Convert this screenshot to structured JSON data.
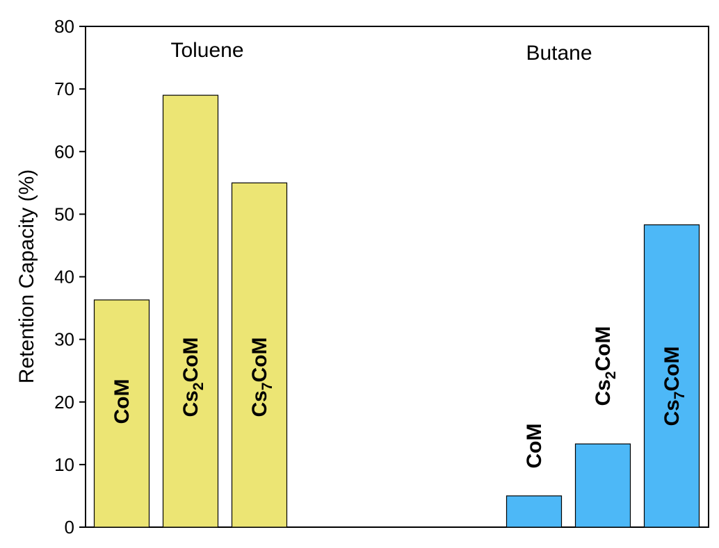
{
  "chart_data": {
    "type": "bar",
    "ylabel": "Retention Capacity (%)",
    "xlabel": "",
    "ylim": [
      0,
      80
    ],
    "yticks": [
      0,
      10,
      20,
      30,
      40,
      50,
      60,
      70,
      80
    ],
    "grid": false,
    "groups": [
      {
        "label": "Toluene",
        "color": "#ece574",
        "bars": [
          {
            "name": "CoM",
            "label_main": "CoM",
            "label_sub": "",
            "label_tail": "",
            "value": 36.3
          },
          {
            "name": "Cs2CoM",
            "label_main": "Cs",
            "label_sub": "2",
            "label_tail": "CoM",
            "value": 69.0
          },
          {
            "name": "Cs7CoM",
            "label_main": "Cs",
            "label_sub": "7",
            "label_tail": "CoM",
            "value": 55.0
          }
        ]
      },
      {
        "label": "Butane",
        "color": "#4db8f7",
        "bars": [
          {
            "name": "CoM",
            "label_main": "CoM",
            "label_sub": "",
            "label_tail": "",
            "value": 5.0
          },
          {
            "name": "Cs2CoM",
            "label_main": "Cs",
            "label_sub": "2",
            "label_tail": "CoM",
            "value": 13.3
          },
          {
            "name": "Cs7CoM",
            "label_main": "Cs",
            "label_sub": "7",
            "label_tail": "CoM",
            "value": 48.3
          }
        ]
      }
    ]
  }
}
